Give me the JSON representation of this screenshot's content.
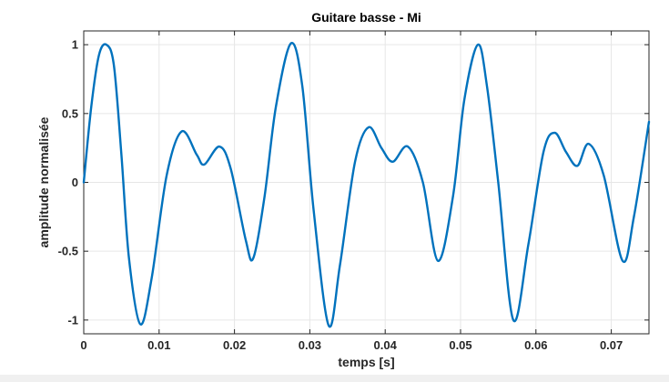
{
  "chart_data": {
    "type": "line",
    "title": "Guitare basse - Mi",
    "xlabel": "temps [s]",
    "ylabel": "amplitude normalisée",
    "xlim": [
      0,
      0.075
    ],
    "ylim": [
      -1.1,
      1.1
    ],
    "xticks": [
      0,
      0.01,
      0.02,
      0.03,
      0.04,
      0.05,
      0.06,
      0.07
    ],
    "xtick_labels": [
      "0",
      "0.01",
      "0.02",
      "0.03",
      "0.04",
      "0.05",
      "0.06",
      "0.07"
    ],
    "yticks": [
      -1,
      -0.5,
      0,
      0.5,
      1
    ],
    "ytick_labels": [
      "-1",
      "-0.5",
      "0",
      "0.5",
      "1"
    ],
    "grid": true,
    "line_color": "#0072bd",
    "series": [
      {
        "x": [
          0,
          0.001,
          0.002,
          0.003,
          0.004,
          0.005,
          0.006,
          0.0075,
          0.009,
          0.011,
          0.013,
          0.015,
          0.016,
          0.018,
          0.0195,
          0.0215,
          0.0225,
          0.024,
          0.0255,
          0.0275,
          0.029,
          0.0305,
          0.0325,
          0.034,
          0.036,
          0.0378,
          0.0395,
          0.041,
          0.043,
          0.045,
          0.047,
          0.049,
          0.0505,
          0.0523,
          0.0535,
          0.055,
          0.057,
          0.059,
          0.061,
          0.0625,
          0.064,
          0.0655,
          0.067,
          0.069,
          0.0715,
          0.073,
          0.075
        ],
        "y": [
          0,
          0.55,
          0.92,
          1.0,
          0.85,
          0.2,
          -0.55,
          -1.03,
          -0.7,
          0.05,
          0.37,
          0.2,
          0.13,
          0.26,
          0.1,
          -0.42,
          -0.55,
          -0.1,
          0.55,
          1.01,
          0.7,
          -0.2,
          -1.04,
          -0.6,
          0.15,
          0.4,
          0.25,
          0.15,
          0.26,
          0.0,
          -0.57,
          -0.1,
          0.6,
          1.0,
          0.7,
          0.0,
          -1.0,
          -0.45,
          0.22,
          0.36,
          0.22,
          0.12,
          0.28,
          0.05,
          -0.57,
          -0.25,
          0.44
        ]
      }
    ]
  }
}
